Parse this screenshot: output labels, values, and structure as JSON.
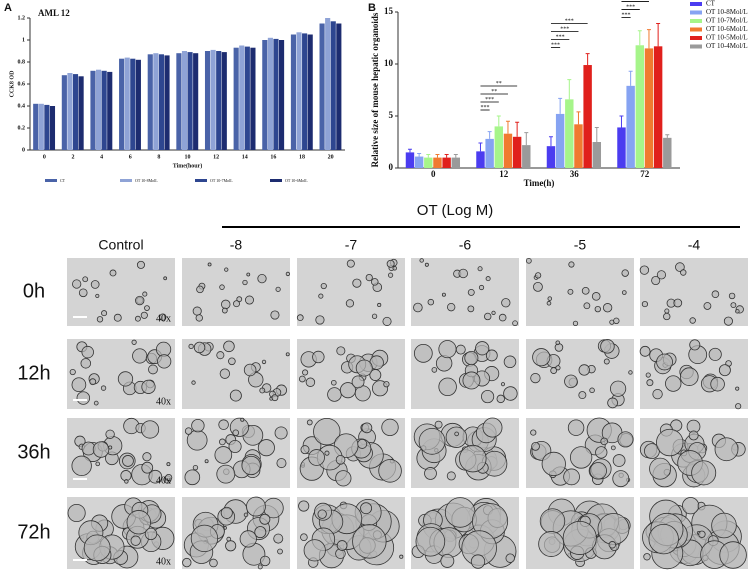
{
  "panel_labels": [
    "A",
    "B"
  ],
  "chart_data": [
    {
      "type": "bar",
      "title": "AML 12",
      "x_label": "Time(hour)",
      "y_label": "CCK8 OD",
      "categories": [
        "0",
        "2",
        "4",
        "6",
        "8",
        "10",
        "12",
        "14",
        "16",
        "18",
        "20"
      ],
      "ylim": [
        0,
        1.2
      ],
      "yticks": [
        0,
        0.2,
        0.4,
        0.6,
        0.8,
        1,
        1.2
      ],
      "legend": "bottom",
      "series": [
        {
          "name": "CT",
          "color": "#4a63a8",
          "values": [
            0.42,
            0.68,
            0.72,
            0.83,
            0.87,
            0.88,
            0.9,
            0.93,
            1.0,
            1.05,
            1.15
          ]
        },
        {
          "name": "OT 10-8MolL",
          "color": "#8fa3d6",
          "values": [
            0.42,
            0.7,
            0.73,
            0.84,
            0.88,
            0.9,
            0.91,
            0.95,
            1.02,
            1.07,
            1.2
          ]
        },
        {
          "name": "OT 10-7MolL",
          "color": "#2e4690",
          "values": [
            0.41,
            0.69,
            0.72,
            0.83,
            0.87,
            0.89,
            0.9,
            0.94,
            1.01,
            1.06,
            1.17
          ]
        },
        {
          "name": "OT 10-6MolL",
          "color": "#1d2c70",
          "values": [
            0.4,
            0.67,
            0.71,
            0.82,
            0.86,
            0.88,
            0.89,
            0.93,
            1.0,
            1.05,
            1.15
          ]
        }
      ]
    },
    {
      "type": "bar",
      "y_label": "Relative size of mouse hepatic organoids",
      "x_label": "Time(h)",
      "categories": [
        "0",
        "12",
        "36",
        "72"
      ],
      "ylim": [
        0,
        15
      ],
      "yticks": [
        0,
        5,
        10,
        15
      ],
      "legend": "top-right",
      "series": [
        {
          "name": "CT",
          "color": "#4b3cf0",
          "values": [
            1.5,
            1.6,
            2.1,
            3.9
          ],
          "errors": [
            0.3,
            0.8,
            0.9,
            1.1
          ]
        },
        {
          "name": "OT 10-8Mol/L",
          "color": "#86a3f2",
          "values": [
            1.1,
            2.8,
            5.2,
            7.9
          ],
          "errors": [
            0.3,
            0.7,
            1.5,
            1.4
          ]
        },
        {
          "name": "OT 10-7Mol/L",
          "color": "#a6f58a",
          "values": [
            1.0,
            4.0,
            6.6,
            11.8
          ],
          "errors": [
            0.3,
            1.0,
            1.9,
            1.4
          ]
        },
        {
          "name": "OT 10-6Mol/L",
          "color": "#f07a30",
          "values": [
            1.0,
            3.3,
            4.2,
            11.5
          ],
          "errors": [
            0.3,
            1.2,
            1.2,
            1.8
          ]
        },
        {
          "name": "OT 10-5Mol/L",
          "color": "#e0201c",
          "values": [
            1.0,
            3.0,
            9.9,
            11.7
          ],
          "errors": [
            0.3,
            1.4,
            1.1,
            2.2
          ]
        },
        {
          "name": "OT 10-4Mol/L",
          "color": "#9a9a9a",
          "values": [
            1.0,
            2.2,
            2.5,
            2.9
          ],
          "errors": [
            0.3,
            1.2,
            1.4,
            0.3
          ]
        }
      ],
      "annotations": [
        {
          "text": "***",
          "category": "12",
          "from": "CT",
          "to": "OT 10-8Mol/L"
        },
        {
          "text": "***",
          "category": "12",
          "from": "CT",
          "to": "OT 10-7Mol/L"
        },
        {
          "text": "**",
          "category": "12",
          "from": "CT",
          "to": "OT 10-6Mol/L"
        },
        {
          "text": "**",
          "category": "12",
          "from": "CT",
          "to": "OT 10-5Mol/L"
        },
        {
          "text": "***",
          "category": "36",
          "from": "CT",
          "to": "OT 10-8Mol/L"
        },
        {
          "text": "***",
          "category": "36",
          "from": "CT",
          "to": "OT 10-7Mol/L"
        },
        {
          "text": "***",
          "category": "36",
          "from": "CT",
          "to": "OT 10-6Mol/L"
        },
        {
          "text": "***",
          "category": "36",
          "from": "CT",
          "to": "OT 10-5Mol/L"
        },
        {
          "text": "***",
          "category": "72",
          "from": "CT",
          "to": "OT 10-8Mol/L"
        },
        {
          "text": "***",
          "category": "72",
          "from": "CT",
          "to": "OT 10-7Mol/L"
        },
        {
          "text": "***",
          "category": "72",
          "from": "CT",
          "to": "OT 10-6Mol/L"
        },
        {
          "text": "***",
          "category": "72",
          "from": "CT",
          "to": "OT 10-5Mol/L"
        },
        {
          "text": "***",
          "category": "72",
          "from": "CT",
          "to": "OT 10-4Mol/L"
        }
      ]
    }
  ],
  "micrographs": {
    "header": "OT (Log M)",
    "columns": [
      "Control",
      "-8",
      "-7",
      "-6",
      "-5",
      "-4"
    ],
    "rows": [
      "0h",
      "12h",
      "36h",
      "72h"
    ],
    "magnification": "40x"
  }
}
